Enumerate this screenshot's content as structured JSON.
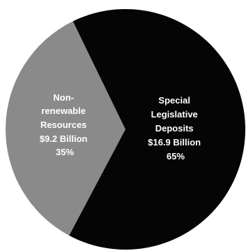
{
  "chart_data": {
    "type": "pie",
    "title": "",
    "start_angle_deg": 208,
    "direction": "clockwise",
    "slices": [
      {
        "label_lines": [
          "Non-",
          "renewable",
          "Resources"
        ],
        "value_label": "$9.2 Billion",
        "percent_label": "35%",
        "value": 9.2,
        "percent": 35,
        "color": "#8a8a8a"
      },
      {
        "label_lines": [
          "Special",
          "Legislative",
          "Deposits"
        ],
        "value_label": "$16.9 Billion",
        "percent_label": "65%",
        "value": 16.9,
        "percent": 65,
        "color": "#050505"
      }
    ]
  }
}
